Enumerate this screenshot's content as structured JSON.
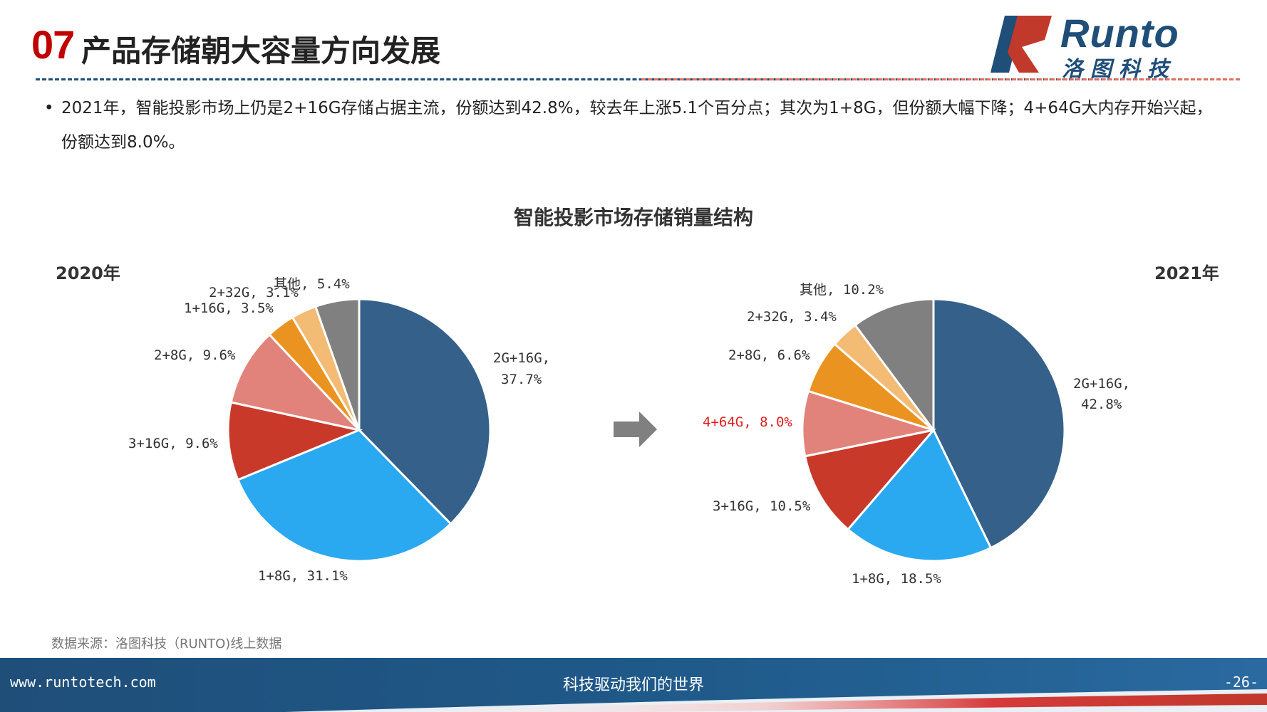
{
  "header": {
    "number": "07",
    "title": "产品存储朝大容量方向发展",
    "logo_text": "Runto",
    "logo_cn": "洛图科技"
  },
  "bullet": "2021年，智能投影市场上仍是2+16G存储占据主流，份额达到42.8%，较去年上涨5.1个百分点；其次为1+8G，但份额大幅下降；4+64G大内存开始兴起，份额达到8.0%。",
  "colors": {
    "2G+16G": "#35608a",
    "1+8G": "#2aa8f0",
    "3+16G": "#c9392a",
    "4+64G": "#e2837b",
    "2+8G": "#e2837b",
    "2+8G_2021": "#eb9320",
    "1+16G": "#eb9320",
    "2+32G": "#f3bb73",
    "其他": "#808080",
    "highlight": "#e02020"
  },
  "chart_data": {
    "title": "智能投影市场存储销量结构",
    "charts": [
      {
        "type": "pie",
        "year": "2020年",
        "slices": [
          {
            "name": "2G+16G",
            "value": 37.7,
            "label": "2G+16G,\n37.7%"
          },
          {
            "name": "1+8G",
            "value": 31.1,
            "label": "1+8G, 31.1%"
          },
          {
            "name": "3+16G",
            "value": 9.6,
            "label": "3+16G, 9.6%"
          },
          {
            "name": "2+8G",
            "value": 9.6,
            "label": "2+8G, 9.6%"
          },
          {
            "name": "1+16G",
            "value": 3.5,
            "label": "1+16G, 3.5%"
          },
          {
            "name": "2+32G",
            "value": 3.1,
            "label": "2+32G, 3.1%"
          },
          {
            "name": "其他",
            "value": 5.4,
            "label": "其他, 5.4%"
          }
        ]
      },
      {
        "type": "pie",
        "year": "2021年",
        "slices": [
          {
            "name": "2G+16G",
            "value": 42.8,
            "label": "2G+16G,\n42.8%"
          },
          {
            "name": "1+8G",
            "value": 18.5,
            "label": "1+8G, 18.5%"
          },
          {
            "name": "3+16G",
            "value": 10.5,
            "label": "3+16G, 10.5%"
          },
          {
            "name": "4+64G",
            "value": 8.0,
            "label": "4+64G, 8.0%"
          },
          {
            "name": "2+8G",
            "value": 6.6,
            "label": "2+8G, 6.6%"
          },
          {
            "name": "2+32G",
            "value": 3.4,
            "label": "2+32G, 3.4%"
          },
          {
            "name": "其他",
            "value": 10.2,
            "label": "其他, 10.2%"
          }
        ]
      }
    ]
  },
  "labels": {
    "y2020": {
      "s0a": "2G+16G,",
      "s0b": "37.7%",
      "s1": "1+8G, 31.1%",
      "s2": "3+16G, 9.6%",
      "s3": "2+8G, 9.6%",
      "s4": "1+16G, 3.5%",
      "s5": "2+32G, 3.1%",
      "s6": "其他, 5.4%"
    },
    "y2021": {
      "s0a": "2G+16G,",
      "s0b": "42.8%",
      "s1": "1+8G, 18.5%",
      "s2": "3+16G, 10.5%",
      "s3": "4+64G, 8.0%",
      "s4": "2+8G, 6.6%",
      "s5": "2+32G, 3.4%",
      "s6": "其他, 10.2%"
    }
  },
  "source": "数据来源：洛图科技（RUNTO)线上数据",
  "footer": {
    "url": "www.runtotech.com",
    "slogan": "科技驱动我们的世界",
    "page": "-26-"
  }
}
